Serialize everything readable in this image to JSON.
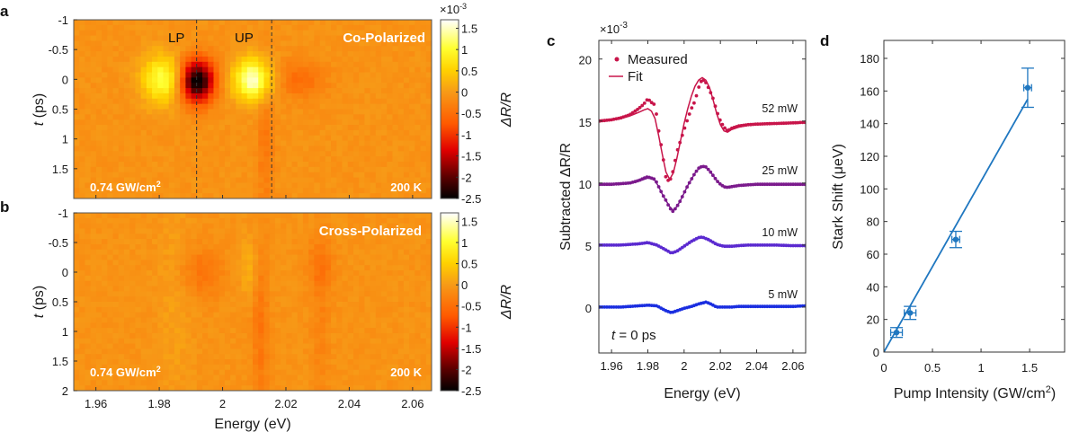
{
  "panels": {
    "a": {
      "letter": "a",
      "title": "Co-Polarized",
      "intensity_label": "0.74 GW/cm",
      "intensity_sup": "2",
      "temperature_label": "200 K",
      "lp_label": "LP",
      "up_label": "UP",
      "ylabel_italic": "t",
      "ylabel_rest": " (ps)"
    },
    "b": {
      "letter": "b",
      "title": "Cross-Polarized",
      "intensity_label": "0.74 GW/cm",
      "intensity_sup": "2",
      "temperature_label": "200 K",
      "ylabel_italic": "t",
      "ylabel_rest": " (ps)",
      "xlabel": "Energy (eV)"
    },
    "c": {
      "letter": "c",
      "scale_label": "×10",
      "scale_exp": "-3",
      "ylabel": "Subtracted ΔR/R",
      "xlabel": "Energy (eV)",
      "annotation_italic": "t",
      "annotation_rest": " = 0 ps",
      "legend": {
        "measured": "Measured",
        "fit": "Fit"
      }
    },
    "d": {
      "letter": "d",
      "ylabel": "Stark Shift (μeV)",
      "xlabel": "Pump Intensity (GW/cm",
      "xlabel_sup": "2",
      "xlabel_end": ")"
    },
    "colorbar": {
      "scale_label": "×10",
      "scale_exp": "-3",
      "label": "ΔR/R"
    }
  },
  "chart_data": [
    {
      "panel": "a",
      "type": "heatmap",
      "title": "Co-Polarized",
      "xlabel": "Energy (eV)",
      "ylabel": "t (ps)",
      "xlim": [
        1.953,
        2.066
      ],
      "ylim": [
        -1,
        2
      ],
      "xticks": [
        1.96,
        1.98,
        2.0,
        2.02,
        2.04,
        2.06
      ],
      "yticks": [
        -1,
        -0.5,
        0,
        0.5,
        1,
        1.5
      ],
      "ytick_labels": [
        "-1",
        "-0.5",
        "0",
        "0.5",
        "1",
        "1.5"
      ],
      "clim": [
        -2.5,
        1.7
      ],
      "colorbar_ticks": [
        1.5,
        1,
        0.5,
        0,
        -0.5,
        -1,
        -1.5,
        -2,
        -2.5
      ],
      "colorbar_tick_labels": [
        "1.5",
        "1",
        "0.5",
        "0",
        "-0.5",
        "-1",
        "-1.5",
        "-2",
        "-2.5"
      ],
      "colorbar_units": "×10^-3",
      "colormap": "hot",
      "dashed_lines_eV": [
        1.9918,
        2.0155
      ],
      "features": [
        {
          "energy": 1.981,
          "time": 0.0,
          "amplitude": 1.2,
          "sigma_e": 0.0045,
          "sigma_t": 0.28
        },
        {
          "energy": 1.992,
          "time": 0.03,
          "amplitude": -2.5,
          "sigma_e": 0.0038,
          "sigma_t": 0.25
        },
        {
          "energy": 2.0095,
          "time": 0.0,
          "amplitude": 1.65,
          "sigma_e": 0.0042,
          "sigma_t": 0.24
        },
        {
          "energy": 2.0245,
          "time": 0.0,
          "amplitude": -0.45,
          "sigma_e": 0.0055,
          "sigma_t": 0.22
        },
        {
          "energy": 2.0135,
          "time": 1.1,
          "amplitude": -0.3,
          "sigma_e": 0.0018,
          "sigma_t": 0.9
        }
      ]
    },
    {
      "panel": "b",
      "type": "heatmap",
      "title": "Cross-Polarized",
      "xlabel": "Energy (eV)",
      "ylabel": "t (ps)",
      "xlim": [
        1.953,
        2.066
      ],
      "ylim": [
        -1,
        2
      ],
      "xticks": [
        1.96,
        1.98,
        2.0,
        2.02,
        2.04,
        2.06
      ],
      "xtick_labels": [
        "1.96",
        "1.98",
        "2",
        "2.02",
        "2.04",
        "2.06"
      ],
      "yticks": [
        -1,
        -0.5,
        0,
        0.5,
        1,
        1.5,
        2
      ],
      "ytick_labels": [
        "-1",
        "-0.5",
        "0",
        "0.5",
        "1",
        "1.5",
        "2"
      ],
      "clim": [
        -2.5,
        1.7
      ],
      "colorbar_ticks": [
        1.5,
        1,
        0.5,
        0,
        -0.5,
        -1,
        -1.5,
        -2,
        -2.5
      ],
      "colorbar_tick_labels": [
        "1.5",
        "1",
        "0.5",
        "0",
        "-0.5",
        "-1",
        "-1.5",
        "-2",
        "-2.5"
      ],
      "colorbar_units": "×10^-3",
      "colormap": "hot",
      "features": [
        {
          "energy": 1.9935,
          "time": 0.0,
          "amplitude": -0.35,
          "sigma_e": 0.0045,
          "sigma_t": 0.3
        },
        {
          "energy": 2.0085,
          "time": -0.1,
          "amplitude": 0.3,
          "sigma_e": 0.002,
          "sigma_t": 0.35
        },
        {
          "energy": 2.012,
          "time": 0.9,
          "amplitude": -0.35,
          "sigma_e": 0.0018,
          "sigma_t": 1.0
        },
        {
          "energy": 2.031,
          "time": -0.1,
          "amplitude": -0.3,
          "sigma_e": 0.003,
          "sigma_t": 0.3
        },
        {
          "energy": 2.031,
          "time": 0.9,
          "amplitude": -0.18,
          "sigma_e": 0.002,
          "sigma_t": 1.0
        },
        {
          "energy": 1.985,
          "time": 0.5,
          "amplitude": 0.12,
          "sigma_e": 0.004,
          "sigma_t": 1.5
        }
      ]
    },
    {
      "panel": "c",
      "type": "line",
      "xlabel": "Energy (eV)",
      "ylabel": "Subtracted ΔR/R",
      "y_units": "×10^-3",
      "xlim": [
        1.953,
        2.067
      ],
      "ylim": [
        -3.7,
        21.5
      ],
      "xticks": [
        1.96,
        1.98,
        2.0,
        2.02,
        2.04,
        2.06
      ],
      "xtick_labels": [
        "1.96",
        "1.98",
        "2",
        "2.02",
        "2.04",
        "2.06"
      ],
      "yticks": [
        0,
        5,
        10,
        15,
        20
      ],
      "ytick_labels": [
        "0",
        "5",
        "10",
        "15",
        "20"
      ],
      "legend_position": "top-left",
      "series": [
        {
          "name": "52 mW",
          "offset": 15,
          "color": "#c8154a",
          "x": [
            1.953,
            1.96,
            1.965,
            1.97,
            1.975,
            1.978,
            1.98,
            1.982,
            1.984,
            1.986,
            1.988,
            1.99,
            1.992,
            1.994,
            1.996,
            1.998,
            2.0,
            2.002,
            2.004,
            2.006,
            2.008,
            2.01,
            2.012,
            2.014,
            2.016,
            2.018,
            2.02,
            2.022,
            2.024,
            2.026,
            2.03,
            2.035,
            2.04,
            2.05,
            2.06,
            2.067
          ],
          "measured": [
            15.0,
            15.1,
            15.25,
            15.5,
            16.0,
            16.4,
            16.8,
            16.5,
            16.3,
            14.2,
            12.5,
            10.4,
            10.1,
            11.0,
            12.5,
            13.4,
            14.3,
            15.2,
            16.0,
            16.6,
            17.7,
            18.4,
            18.1,
            17.5,
            16.8,
            15.8,
            15.0,
            14.5,
            14.2,
            14.4,
            14.6,
            14.7,
            14.75,
            14.8,
            14.85,
            14.9
          ],
          "fit": [
            15.0,
            15.1,
            15.2,
            15.4,
            15.7,
            15.9,
            16.0,
            15.8,
            15.2,
            13.8,
            12.3,
            10.9,
            10.3,
            10.8,
            12.0,
            13.4,
            14.8,
            16.0,
            17.0,
            17.8,
            18.3,
            18.5,
            18.3,
            17.7,
            16.7,
            15.6,
            14.7,
            14.2,
            14.1,
            14.3,
            14.5,
            14.65,
            14.75,
            14.8,
            14.85,
            14.9
          ]
        },
        {
          "name": "25 mW",
          "offset": 10,
          "color": "#7b1a8c",
          "x": [
            1.953,
            1.96,
            1.965,
            1.97,
            1.975,
            1.978,
            1.98,
            1.982,
            1.984,
            1.986,
            1.988,
            1.99,
            1.992,
            1.994,
            1.996,
            1.998,
            2.0,
            2.002,
            2.004,
            2.006,
            2.008,
            2.01,
            2.012,
            2.014,
            2.016,
            2.018,
            2.02,
            2.022,
            2.024,
            2.026,
            2.03,
            2.035,
            2.04,
            2.05,
            2.06,
            2.067
          ],
          "measured": [
            9.9,
            9.9,
            9.95,
            10.0,
            10.2,
            10.4,
            10.5,
            10.4,
            10.3,
            9.7,
            9.1,
            8.6,
            8.0,
            7.7,
            8.1,
            8.6,
            9.2,
            9.8,
            10.3,
            10.8,
            11.2,
            11.35,
            11.3,
            11.0,
            10.6,
            10.2,
            9.9,
            9.7,
            9.65,
            9.7,
            9.8,
            9.85,
            9.9,
            9.9,
            9.9,
            9.9
          ],
          "fit": [
            9.9,
            9.9,
            9.95,
            10.0,
            10.15,
            10.3,
            10.4,
            10.35,
            10.2,
            9.7,
            9.1,
            8.6,
            8.1,
            7.8,
            8.1,
            8.6,
            9.2,
            9.8,
            10.3,
            10.8,
            11.15,
            11.3,
            11.25,
            11.0,
            10.6,
            10.2,
            9.9,
            9.7,
            9.65,
            9.7,
            9.8,
            9.85,
            9.9,
            9.9,
            9.9,
            9.9
          ]
        },
        {
          "name": "10 mW",
          "offset": 5,
          "color": "#5b2ad0",
          "x": [
            1.953,
            1.96,
            1.965,
            1.97,
            1.975,
            1.98,
            1.985,
            1.99,
            1.993,
            1.996,
            2.0,
            2.004,
            2.008,
            2.01,
            2.014,
            2.018,
            2.022,
            2.026,
            2.03,
            2.035,
            2.04,
            2.05,
            2.06,
            2.067
          ],
          "measured": [
            5.0,
            5.0,
            5.0,
            5.05,
            5.1,
            5.2,
            5.0,
            4.6,
            4.35,
            4.5,
            4.9,
            5.3,
            5.6,
            5.65,
            5.4,
            5.05,
            4.9,
            4.9,
            4.95,
            5.0,
            5.0,
            5.0,
            4.95,
            4.95
          ],
          "fit": [
            5.0,
            5.0,
            5.0,
            5.05,
            5.1,
            5.15,
            5.0,
            4.65,
            4.4,
            4.5,
            4.9,
            5.3,
            5.55,
            5.6,
            5.4,
            5.05,
            4.9,
            4.9,
            4.95,
            5.0,
            5.0,
            5.0,
            4.95,
            4.95
          ]
        },
        {
          "name": "5 mW",
          "offset": 0,
          "color": "#1a2ee0",
          "x": [
            1.953,
            1.96,
            1.965,
            1.97,
            1.975,
            1.98,
            1.985,
            1.99,
            1.993,
            1.996,
            2.0,
            2.004,
            2.008,
            2.012,
            2.014,
            2.018,
            2.022,
            2.026,
            2.03,
            2.035,
            2.04,
            2.05,
            2.06,
            2.067
          ],
          "measured": [
            0.0,
            0.0,
            0.0,
            0.05,
            0.1,
            0.15,
            0.1,
            -0.3,
            -0.45,
            -0.3,
            -0.1,
            0.05,
            0.25,
            0.4,
            0.3,
            0.0,
            0.0,
            0.0,
            0.05,
            0.05,
            0.05,
            0.05,
            0.05,
            0.1
          ],
          "fit": [
            0.0,
            0.0,
            0.0,
            0.05,
            0.1,
            0.15,
            0.1,
            -0.25,
            -0.4,
            -0.3,
            -0.1,
            0.05,
            0.25,
            0.35,
            0.3,
            0.0,
            0.0,
            0.0,
            0.05,
            0.05,
            0.05,
            0.05,
            0.05,
            0.1
          ]
        }
      ]
    },
    {
      "panel": "d",
      "type": "scatter",
      "xlabel": "Pump Intensity (GW/cm^2)",
      "ylabel": "Stark Shift (μeV)",
      "xlim": [
        0,
        1.86
      ],
      "ylim": [
        0,
        191
      ],
      "xticks": [
        0,
        0.5,
        1,
        1.5
      ],
      "xtick_labels": [
        "0",
        "0.5",
        "1",
        "1.5"
      ],
      "yticks": [
        0,
        20,
        40,
        60,
        80,
        100,
        120,
        140,
        160,
        180
      ],
      "ytick_labels": [
        "0",
        "20",
        "40",
        "60",
        "80",
        "100",
        "120",
        "140",
        "160",
        "180"
      ],
      "color": "#1f77c0",
      "points": [
        {
          "x": 0.13,
          "y": 12,
          "xerr": 0.06,
          "yerr": 3
        },
        {
          "x": 0.27,
          "y": 24,
          "xerr": 0.06,
          "yerr": 4
        },
        {
          "x": 0.74,
          "y": 69,
          "xerr": 0.04,
          "yerr": 5
        },
        {
          "x": 1.48,
          "y": 162,
          "xerr": 0.04,
          "yerr": 12
        }
      ],
      "fit_line": {
        "x": [
          0,
          1.48
        ],
        "y": [
          0,
          155
        ]
      }
    }
  ]
}
